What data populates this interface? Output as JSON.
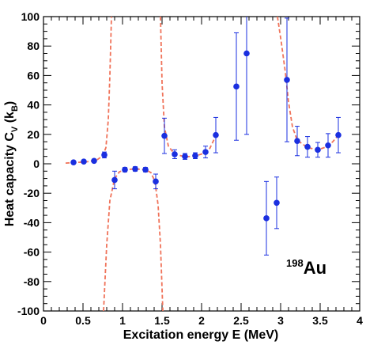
{
  "chart_data": {
    "type": "scatter",
    "title": "",
    "xlabel": "Excitation energy E (MeV)",
    "ylabel": {
      "main": "Heat capacity C",
      "sub_v": "V",
      "unit_open": " (k",
      "sub_b": "B",
      "unit_close": ")"
    },
    "xlim": [
      0,
      4
    ],
    "ylim": [
      -100,
      100
    ],
    "x_ticks": [
      0,
      0.5,
      1,
      1.5,
      2,
      2.5,
      3,
      3.5,
      4
    ],
    "x_tick_labels": [
      "0",
      "0.5",
      "1",
      "1.5",
      "2",
      "2.5",
      "3",
      "3.5",
      "4"
    ],
    "y_ticks": [
      -100,
      -80,
      -60,
      -40,
      -20,
      0,
      20,
      40,
      60,
      80,
      100
    ],
    "y_tick_labels": [
      "-100",
      "-80",
      "-60",
      "-40",
      "-20",
      "0",
      "20",
      "40",
      "60",
      "80",
      "100"
    ],
    "grid": false,
    "annotation": {
      "mass_number": "198",
      "element": "Au",
      "position": "bottom-right"
    },
    "colors": {
      "points": "#1a2fe0",
      "error_bars": "#1a2fe0",
      "fit_curve": "#f0735a",
      "axes": "#000000"
    },
    "series": [
      {
        "kind": "points-with-error-bars",
        "points": [
          {
            "x": 0.38,
            "y": 1.0,
            "err": 1.0
          },
          {
            "x": 0.51,
            "y": 1.5,
            "err": 1.0
          },
          {
            "x": 0.64,
            "y": 2.0,
            "err": 1.0
          },
          {
            "x": 0.77,
            "y": 6.0,
            "err": 2.0
          },
          {
            "x": 0.9,
            "y": -11.0,
            "err": 6.0
          },
          {
            "x": 1.03,
            "y": -4.0,
            "err": 1.5
          },
          {
            "x": 1.16,
            "y": -3.5,
            "err": 1.5
          },
          {
            "x": 1.29,
            "y": -4.0,
            "err": 1.5
          },
          {
            "x": 1.42,
            "y": -12.0,
            "err": 5.0
          },
          {
            "x": 1.53,
            "y": 19.0,
            "err": 12.0
          },
          {
            "x": 1.66,
            "y": 6.5,
            "err": 3.0
          },
          {
            "x": 1.79,
            "y": 5.0,
            "err": 2.0
          },
          {
            "x": 1.92,
            "y": 5.5,
            "err": 2.0
          },
          {
            "x": 2.05,
            "y": 8.0,
            "err": 4.0
          },
          {
            "x": 2.18,
            "y": 19.5,
            "err": 12.0
          },
          {
            "x": 2.44,
            "y": 52.5,
            "err": 36.5
          },
          {
            "x": 2.57,
            "y": 75.0,
            "err": 55.0
          },
          {
            "x": 2.82,
            "y": -37.0,
            "err": 25.0
          },
          {
            "x": 2.95,
            "y": -26.5,
            "err": 17.5
          },
          {
            "x": 3.08,
            "y": 57.0,
            "err": 42.0
          },
          {
            "x": 3.21,
            "y": 15.5,
            "err": 10.0
          },
          {
            "x": 3.34,
            "y": 11.5,
            "err": 7.0
          },
          {
            "x": 3.47,
            "y": 9.5,
            "err": 5.0
          },
          {
            "x": 3.6,
            "y": 12.5,
            "err": 8.0
          },
          {
            "x": 3.73,
            "y": 19.5,
            "err": 12.0
          }
        ]
      },
      {
        "kind": "fit-curve-dashed",
        "segments": [
          [
            [
              0.28,
              0.5
            ],
            [
              0.45,
              1.0
            ],
            [
              0.58,
              1.5
            ],
            [
              0.68,
              2.8
            ],
            [
              0.75,
              5.5
            ],
            [
              0.79,
              11.0
            ],
            [
              0.82,
              30.0
            ],
            [
              0.84,
              60.0
            ],
            [
              0.86,
              100.0
            ]
          ],
          [
            [
              0.76,
              -100.0
            ],
            [
              0.8,
              -55.0
            ],
            [
              0.84,
              -25.0
            ],
            [
              0.9,
              -10.0
            ],
            [
              0.96,
              -5.5
            ],
            [
              1.03,
              -4.0
            ],
            [
              1.16,
              -3.5
            ],
            [
              1.29,
              -4.0
            ],
            [
              1.36,
              -6.0
            ],
            [
              1.41,
              -12.0
            ],
            [
              1.45,
              -28.0
            ],
            [
              1.48,
              -55.0
            ],
            [
              1.51,
              -100.0
            ]
          ],
          [
            [
              1.48,
              100.0
            ],
            [
              1.5,
              55.0
            ],
            [
              1.53,
              25.0
            ],
            [
              1.58,
              12.0
            ],
            [
              1.66,
              6.5
            ],
            [
              1.79,
              4.8
            ],
            [
              1.92,
              5.2
            ],
            [
              2.02,
              7.0
            ],
            [
              2.1,
              10.0
            ],
            [
              2.18,
              19.0
            ]
          ],
          [
            [
              2.96,
              100.0
            ],
            [
              3.01,
              82.0
            ],
            [
              3.06,
              62.0
            ],
            [
              3.1,
              42.0
            ],
            [
              3.15,
              25.0
            ],
            [
              3.21,
              16.0
            ],
            [
              3.34,
              11.0
            ],
            [
              3.47,
              9.5
            ],
            [
              3.58,
              11.5
            ],
            [
              3.66,
              15.0
            ],
            [
              3.73,
              19.5
            ]
          ]
        ]
      }
    ]
  }
}
